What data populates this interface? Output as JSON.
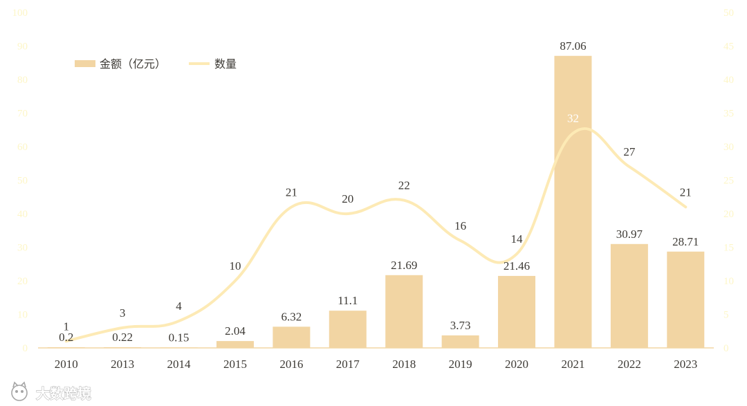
{
  "chart_data": {
    "type": "bar",
    "categories": [
      "2010",
      "2013",
      "2014",
      "2015",
      "2016",
      "2017",
      "2018",
      "2019",
      "2020",
      "2021",
      "2022",
      "2023"
    ],
    "series": [
      {
        "name": "金额（亿元）",
        "type": "bar",
        "axis": "left",
        "values": [
          0.2,
          0.22,
          0.15,
          2.04,
          6.32,
          11.1,
          21.69,
          3.73,
          21.46,
          87.06,
          30.97,
          28.71
        ]
      },
      {
        "name": "数量",
        "type": "line",
        "smooth": true,
        "axis": "right",
        "values": [
          1,
          3,
          4,
          10,
          21,
          20,
          22,
          16,
          14,
          32,
          27,
          21
        ]
      }
    ],
    "ylim": [
      0,
      100
    ],
    "y_ticks": [
      0,
      10,
      20,
      30,
      40,
      50,
      60,
      70,
      80,
      90,
      100
    ],
    "y2lim": [
      0,
      50
    ],
    "y2_ticks": [
      0,
      5,
      10,
      15,
      20,
      25,
      30,
      35,
      40,
      45,
      50
    ],
    "legend_position": "top-left",
    "grid": false,
    "colors": {
      "bar": "#f2d5a3",
      "line": "#fdeab5",
      "axis_line": "#f2d5a3",
      "tick_text": "#fdf6c7",
      "label_text": "#3d3a35"
    }
  },
  "watermark": {
    "text": "大数跨境",
    "icon": "cat-face-logo-icon"
  }
}
